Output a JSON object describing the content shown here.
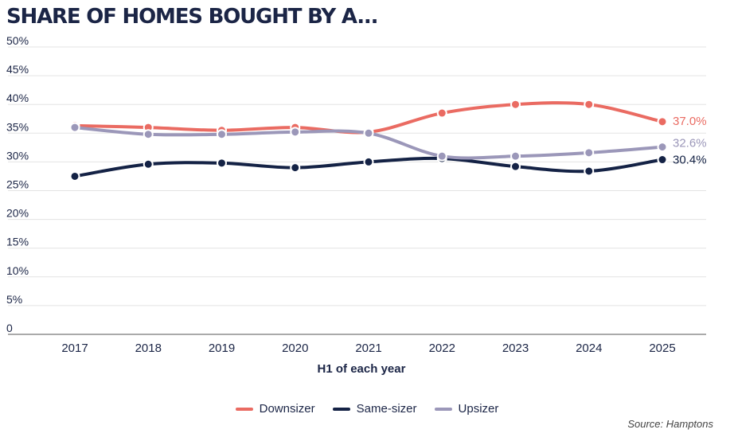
{
  "title": "SHARE OF HOMES BOUGHT BY A...",
  "source": "Source: Hamptons",
  "chart_data": {
    "type": "line",
    "xlabel": "H1 of each year",
    "ylabel": "",
    "ylim": [
      0,
      50
    ],
    "yticks": [
      0,
      5,
      10,
      15,
      20,
      25,
      30,
      35,
      40,
      45,
      50
    ],
    "ytick_labels": [
      "0",
      "5%",
      "10%",
      "15%",
      "20%",
      "25%",
      "30%",
      "35%",
      "40%",
      "45%",
      "50%"
    ],
    "categories": [
      "2017",
      "2018",
      "2019",
      "2020",
      "2021",
      "2022",
      "2023",
      "2024",
      "2025"
    ],
    "grid": true,
    "legend_position": "bottom-center",
    "series": [
      {
        "name": "Downsizer",
        "color": "#ea6b62",
        "end_label": "37.0%",
        "values": [
          36.3,
          36.0,
          35.5,
          36.0,
          35.2,
          38.5,
          40.0,
          40.0,
          37.0
        ]
      },
      {
        "name": "Same-sizer",
        "color": "#142245",
        "end_label": "30.4%",
        "values": [
          27.5,
          29.6,
          29.8,
          29.0,
          30.0,
          30.6,
          29.2,
          28.4,
          30.4
        ]
      },
      {
        "name": "Upsizer",
        "color": "#9b97b9",
        "end_label": "32.6%",
        "values": [
          36.0,
          34.8,
          34.8,
          35.2,
          35.0,
          31.0,
          31.0,
          31.6,
          32.6
        ]
      }
    ]
  }
}
